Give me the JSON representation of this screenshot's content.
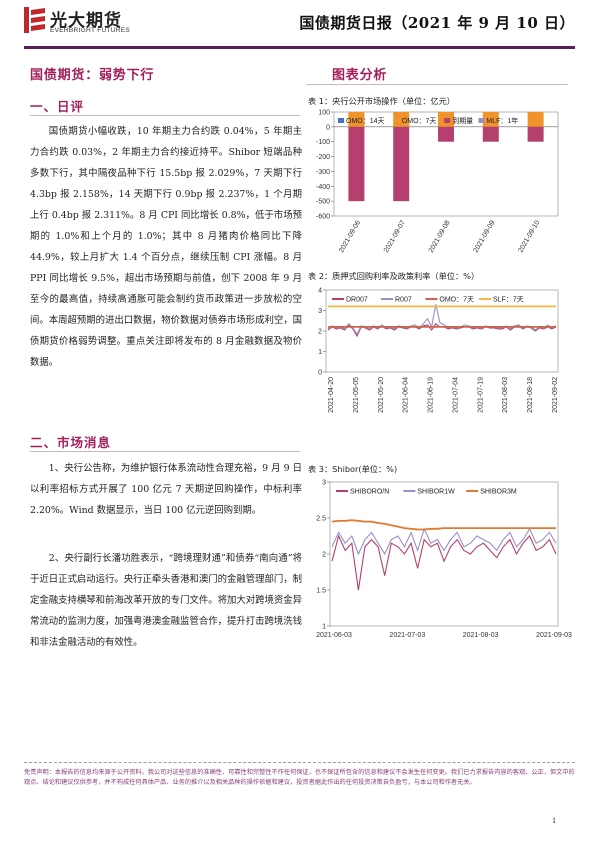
{
  "header": {
    "logo_cn": "光大期货",
    "logo_en": "EVERBRIGHT FUTURES",
    "report_title": "国债期货日报（2021 年 9 月 10 日）"
  },
  "left": {
    "main_title": "国债期货：弱势下行",
    "section1_title": "一、日评",
    "section1_para": "国债期货小幅收跌，10 年期主力合约跌 0.04%，5 年期主力合约跌 0.03%，2 年期主力合约接近持平。Shibor 短端品种多数下行，其中隔夜品种下行 15.5bp 报 2.029%，7 天期下行 4.3bp 报 2.158%，14 天期下行 0.9bp 报 2.237%，1 个月期上行 0.4bp 报 2.311%。8 月 CPI 同比增长 0.8%，低于市场预期的 1.0%和上个月的 1.0%；其中 8 月猪肉价格同比下降 44.9%，较上月扩大 1.4 个百分点，继续压制 CPI 涨幅。8 月 PPI 同比增长 9.5%，超出市场预期与前值，创下 2008 年 9 月至今的最高值，持续高通胀可能会制约货币政策进一步放松的空间。本周超预期的进出口数据，物价数据对债券市场形成利空，国债期货价格弱势调整。重点关注即将发布的 8 月金融数据及物价数据。",
    "section2_title": "二、市场消息",
    "section2_para1": "1、央行公告称，为维护银行体系流动性合理充裕，9 月 9 日以利率招标方式开展了 100 亿元 7 天期逆回购操作，中标利率 2.20%。Wind 数据显示，当日 100 亿元逆回购到期。",
    "section2_para2": "2、央行副行长潘功胜表示，“跨境理财通”和债券“南向通”将于近日正式启动运行。央行正牵头香港和澳门的金融管理部门，制定金融支持横琴和前海改革开放的专门文件。将加大对跨境资金异常流动的监测力度，加强粤港澳金融监管合作，提升打击跨境洗钱和非法金融活动的有效性。"
  },
  "right": {
    "title": "图表分析",
    "cap1": "表 1：央行公开市场操作（单位：亿元）",
    "cap2": "表 2：质押式回购利率及政策利率（单位：%）",
    "cap3": "表 3：Shibor(单位：%)"
  },
  "chart_data": [
    {
      "type": "bar",
      "categories": [
        "2021-09-06",
        "2021-09-07",
        "2021-09-08",
        "2021-09-09",
        "2021-09-10"
      ],
      "series": [
        {
          "name": "OMO：14天",
          "color": "#4472c4",
          "values": [
            0,
            0,
            0,
            0,
            0
          ]
        },
        {
          "name": "OMO：7天",
          "color": "#f0932b",
          "values": [
            100,
            100,
            100,
            100,
            100
          ]
        },
        {
          "name": "到期量",
          "color": "#b5406f",
          "values": [
            -500,
            -500,
            -100,
            -100,
            -100
          ]
        },
        {
          "name": "MLF：1年",
          "color": "#9a8fc8",
          "values": [
            0,
            0,
            0,
            0,
            0
          ]
        }
      ],
      "ylim": [
        -600,
        100
      ],
      "yticks": [
        "100",
        "0",
        "-100",
        "-200",
        "-300",
        "-400",
        "-500",
        "-600"
      ]
    },
    {
      "type": "line",
      "x_ticks": [
        "2021-04-20",
        "2021-05-05",
        "2021-05-20",
        "2021-06-04",
        "2021-06-19",
        "2021-07-04",
        "2021-07-19",
        "2021-08-03",
        "2021-08-18",
        "2021-09-02"
      ],
      "ylim": [
        0,
        4
      ],
      "yticks": [
        "4",
        "3",
        "2",
        "1",
        "0"
      ],
      "series": [
        {
          "name": "DR007",
          "color": "#b5406f",
          "values": [
            2.05,
            2.2,
            2.1,
            2.15,
            2.05,
            2.3,
            2.1,
            1.75,
            2.2,
            2.15,
            2.05,
            2.2,
            2.1,
            2.25,
            2.1,
            2.15,
            2.05,
            2.2,
            2.15,
            2.1,
            2.2,
            2.2,
            2.1,
            2.25,
            2.3,
            2.05,
            2.35,
            2.2,
            2.2,
            2.1,
            2.15,
            2.1,
            2.15,
            2.2,
            2.2,
            2.1,
            2.15,
            2.1,
            2.2,
            2.15,
            2.15,
            2.1,
            2.1,
            2.2,
            2.05,
            2.2,
            2.25,
            2.1,
            2.2,
            2.15,
            2.0,
            2.15,
            2.1,
            2.2,
            2.1,
            2.2
          ]
        },
        {
          "name": "R007",
          "color": "#9a8fc8",
          "values": [
            2.1,
            2.25,
            2.15,
            2.2,
            2.1,
            2.35,
            2.15,
            1.85,
            2.25,
            2.2,
            2.1,
            2.25,
            2.15,
            2.3,
            2.15,
            2.2,
            2.1,
            2.25,
            2.2,
            2.15,
            2.25,
            2.3,
            2.15,
            2.35,
            2.6,
            2.2,
            3.3,
            2.4,
            2.3,
            2.15,
            2.2,
            2.15,
            2.2,
            2.3,
            2.25,
            2.15,
            2.2,
            2.15,
            2.25,
            2.2,
            2.2,
            2.15,
            2.15,
            2.25,
            2.1,
            2.25,
            2.3,
            2.15,
            2.25,
            2.2,
            2.05,
            2.2,
            2.15,
            2.3,
            2.15,
            2.25
          ]
        },
        {
          "name": "OMO：7天",
          "color": "#c9664a",
          "values": [
            2.2,
            2.2
          ]
        },
        {
          "name": "SLF：7天",
          "color": "#f5b841",
          "values": [
            3.2,
            3.2
          ]
        }
      ]
    },
    {
      "type": "line",
      "x_ticks": [
        "2021-06-03",
        "2021-07-03",
        "2021-08-03",
        "2021-09-03"
      ],
      "ylim": [
        1,
        3
      ],
      "yticks": [
        "3",
        "2.5",
        "2",
        "1.5",
        "1"
      ],
      "series": [
        {
          "name": "SHIBORO/N",
          "color": "#b5406f",
          "values": [
            1.9,
            2.25,
            2.05,
            2.15,
            1.5,
            2.1,
            2.2,
            2.1,
            1.7,
            2.15,
            2.1,
            2.0,
            2.15,
            1.8,
            2.2,
            2.1,
            2.15,
            1.9,
            2.1,
            2.2,
            2.05,
            2.0,
            2.1,
            2.15,
            2.05,
            1.95,
            2.1,
            2.2,
            2.0,
            2.15,
            2.25,
            2.05,
            2.1,
            2.2,
            2.0
          ]
        },
        {
          "name": "SHIBOR1W",
          "color": "#9a8fc8",
          "values": [
            2.1,
            2.3,
            2.15,
            2.25,
            2.0,
            2.2,
            2.3,
            2.15,
            2.0,
            2.2,
            2.25,
            2.1,
            2.3,
            2.05,
            2.35,
            2.15,
            2.2,
            2.05,
            2.2,
            2.3,
            2.1,
            2.15,
            2.25,
            2.2,
            2.15,
            2.05,
            2.2,
            2.3,
            2.1,
            2.2,
            2.35,
            2.15,
            2.2,
            2.3,
            2.15
          ]
        },
        {
          "name": "SHIBOR3M",
          "color": "#e07a2f",
          "values": [
            2.45,
            2.46,
            2.46,
            2.47,
            2.46,
            2.45,
            2.45,
            2.43,
            2.42,
            2.4,
            2.38,
            2.36,
            2.35,
            2.34,
            2.34,
            2.35,
            2.35,
            2.36,
            2.36,
            2.36,
            2.36,
            2.36,
            2.36,
            2.36,
            2.36,
            2.36,
            2.36,
            2.36,
            2.36,
            2.36,
            2.36,
            2.36,
            2.36,
            2.36,
            2.36
          ]
        }
      ]
    }
  ],
  "footer": {
    "disclaimer": "免责声明：本报告的信息均来源于公开资料，我公司对这些信息的准确性、可靠性和完整性不作任何保证，也不保证所包含的信息和建议不会发生任何变更。我们已力求报告内容的客观、公正，但文中的观点、结论和建议仅供参考，并不构成任何具体产品、业务的推介以及相关品种的操作依据和建议，投资者据此作出的任何投资决策自负盈亏，与本公司和作者无关。",
    "page_number": "1"
  },
  "colors": {
    "accent": "#a21f5a",
    "brand_bar": "#5a1f57"
  }
}
